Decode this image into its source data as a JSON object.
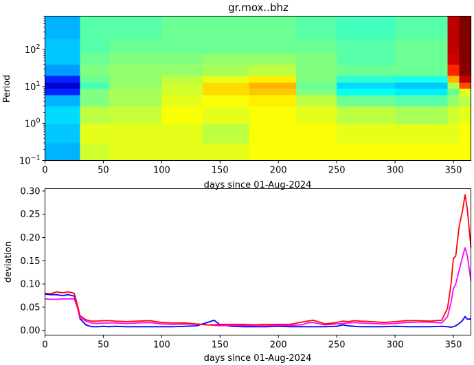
{
  "chart_data": [
    {
      "type": "heatmap",
      "title": "gr.mox..bhz",
      "xlabel": "days since 01-Aug-2024",
      "ylabel": "Period",
      "xlim": [
        0,
        365
      ],
      "ylim": [
        0.1,
        800
      ],
      "yscale": "log",
      "colormap": "jet",
      "x_ticks": [
        "0",
        "50",
        "100",
        "150",
        "200",
        "250",
        "300",
        "350"
      ],
      "y_ticks": [
        "10^-1",
        "10^0",
        "10^1",
        "10^2"
      ],
      "period_bands": [
        0.1,
        0.3,
        1,
        3,
        6,
        9,
        13,
        20,
        40,
        80,
        200,
        800
      ],
      "x_segments": [
        {
          "x0": 0,
          "x1": 30,
          "values": [
            0.3,
            0.32,
            0.34,
            0.3,
            0.16,
            0.08,
            0.16,
            0.28,
            0.32,
            0.32,
            0.3
          ]
        },
        {
          "x0": 30,
          "x1": 55,
          "values": [
            0.58,
            0.6,
            0.56,
            0.5,
            0.5,
            0.44,
            0.48,
            0.5,
            0.48,
            0.46,
            0.46
          ]
        },
        {
          "x0": 55,
          "x1": 100,
          "values": [
            0.6,
            0.6,
            0.57,
            0.54,
            0.54,
            0.52,
            0.52,
            0.52,
            0.5,
            0.48,
            0.46
          ]
        },
        {
          "x0": 100,
          "x1": 135,
          "values": [
            0.6,
            0.6,
            0.62,
            0.6,
            0.58,
            0.58,
            0.56,
            0.52,
            0.5,
            0.48,
            0.48
          ]
        },
        {
          "x0": 135,
          "x1": 175,
          "values": [
            0.6,
            0.56,
            0.6,
            0.62,
            0.66,
            0.66,
            0.6,
            0.54,
            0.52,
            0.48,
            0.48
          ]
        },
        {
          "x0": 175,
          "x1": 215,
          "values": [
            0.62,
            0.62,
            0.62,
            0.64,
            0.68,
            0.7,
            0.64,
            0.56,
            0.52,
            0.48,
            0.48
          ]
        },
        {
          "x0": 215,
          "x1": 250,
          "values": [
            0.62,
            0.62,
            0.6,
            0.56,
            0.5,
            0.48,
            0.5,
            0.5,
            0.5,
            0.48,
            0.46
          ]
        },
        {
          "x0": 250,
          "x1": 300,
          "values": [
            0.62,
            0.6,
            0.56,
            0.48,
            0.38,
            0.34,
            0.42,
            0.48,
            0.46,
            0.46,
            0.44
          ]
        },
        {
          "x0": 300,
          "x1": 345,
          "values": [
            0.62,
            0.6,
            0.54,
            0.46,
            0.36,
            0.32,
            0.4,
            0.48,
            0.48,
            0.48,
            0.46
          ]
        },
        {
          "x0": 345,
          "x1": 355,
          "values": [
            0.62,
            0.6,
            0.58,
            0.52,
            0.48,
            0.55,
            0.7,
            0.84,
            0.92,
            0.94,
            0.94
          ]
        },
        {
          "x0": 355,
          "x1": 365,
          "values": [
            0.62,
            0.62,
            0.6,
            0.56,
            0.6,
            0.8,
            0.93,
            0.99,
            1.0,
            1.0,
            1.0
          ]
        }
      ]
    },
    {
      "type": "line",
      "xlabel": "days since 01-Aug-2024",
      "ylabel": "deviation",
      "xlim": [
        0,
        365
      ],
      "ylim": [
        -0.01,
        0.305
      ],
      "x_ticks": [
        "0",
        "50",
        "100",
        "150",
        "200",
        "250",
        "300",
        "350"
      ],
      "y_ticks": [
        "0.00",
        "0.05",
        "0.10",
        "0.15",
        "0.20",
        "0.25",
        "0.30"
      ],
      "x": [
        0,
        5,
        10,
        15,
        20,
        25,
        27,
        30,
        35,
        40,
        45,
        50,
        55,
        60,
        70,
        80,
        90,
        100,
        110,
        120,
        130,
        140,
        145,
        150,
        160,
        170,
        180,
        190,
        200,
        210,
        220,
        225,
        230,
        240,
        250,
        255,
        260,
        265,
        270,
        280,
        290,
        300,
        310,
        320,
        330,
        340,
        345,
        348,
        350,
        352,
        355,
        358,
        360,
        362,
        365
      ],
      "series": [
        {
          "color": "#0000ff",
          "values": [
            0.078,
            0.077,
            0.077,
            0.075,
            0.077,
            0.074,
            0.06,
            0.025,
            0.012,
            0.008,
            0.008,
            0.009,
            0.008,
            0.009,
            0.008,
            0.008,
            0.008,
            0.008,
            0.008,
            0.009,
            0.01,
            0.018,
            0.022,
            0.012,
            0.009,
            0.008,
            0.008,
            0.008,
            0.009,
            0.008,
            0.008,
            0.008,
            0.008,
            0.008,
            0.009,
            0.012,
            0.01,
            0.009,
            0.008,
            0.008,
            0.008,
            0.009,
            0.008,
            0.008,
            0.008,
            0.009,
            0.008,
            0.007,
            0.008,
            0.01,
            0.015,
            0.022,
            0.03,
            0.024,
            0.025
          ]
        },
        {
          "color": "#ff00ff",
          "values": [
            0.068,
            0.067,
            0.067,
            0.068,
            0.068,
            0.068,
            0.055,
            0.028,
            0.02,
            0.016,
            0.015,
            0.016,
            0.016,
            0.016,
            0.015,
            0.016,
            0.017,
            0.014,
            0.013,
            0.014,
            0.013,
            0.012,
            0.011,
            0.01,
            0.011,
            0.011,
            0.01,
            0.01,
            0.011,
            0.011,
            0.012,
            0.016,
            0.017,
            0.012,
            0.014,
            0.015,
            0.016,
            0.017,
            0.016,
            0.015,
            0.014,
            0.015,
            0.017,
            0.018,
            0.018,
            0.016,
            0.03,
            0.06,
            0.09,
            0.1,
            0.13,
            0.16,
            0.178,
            0.16,
            0.107
          ]
        },
        {
          "color": "#ff0000",
          "values": [
            0.08,
            0.079,
            0.083,
            0.081,
            0.083,
            0.08,
            0.062,
            0.032,
            0.023,
            0.02,
            0.02,
            0.021,
            0.021,
            0.02,
            0.019,
            0.02,
            0.021,
            0.017,
            0.016,
            0.016,
            0.014,
            0.012,
            0.012,
            0.013,
            0.013,
            0.013,
            0.012,
            0.013,
            0.013,
            0.013,
            0.018,
            0.02,
            0.022,
            0.014,
            0.017,
            0.02,
            0.019,
            0.021,
            0.02,
            0.019,
            0.017,
            0.019,
            0.021,
            0.021,
            0.02,
            0.022,
            0.048,
            0.1,
            0.155,
            0.16,
            0.225,
            0.26,
            0.292,
            0.26,
            0.178
          ]
        }
      ]
    }
  ]
}
